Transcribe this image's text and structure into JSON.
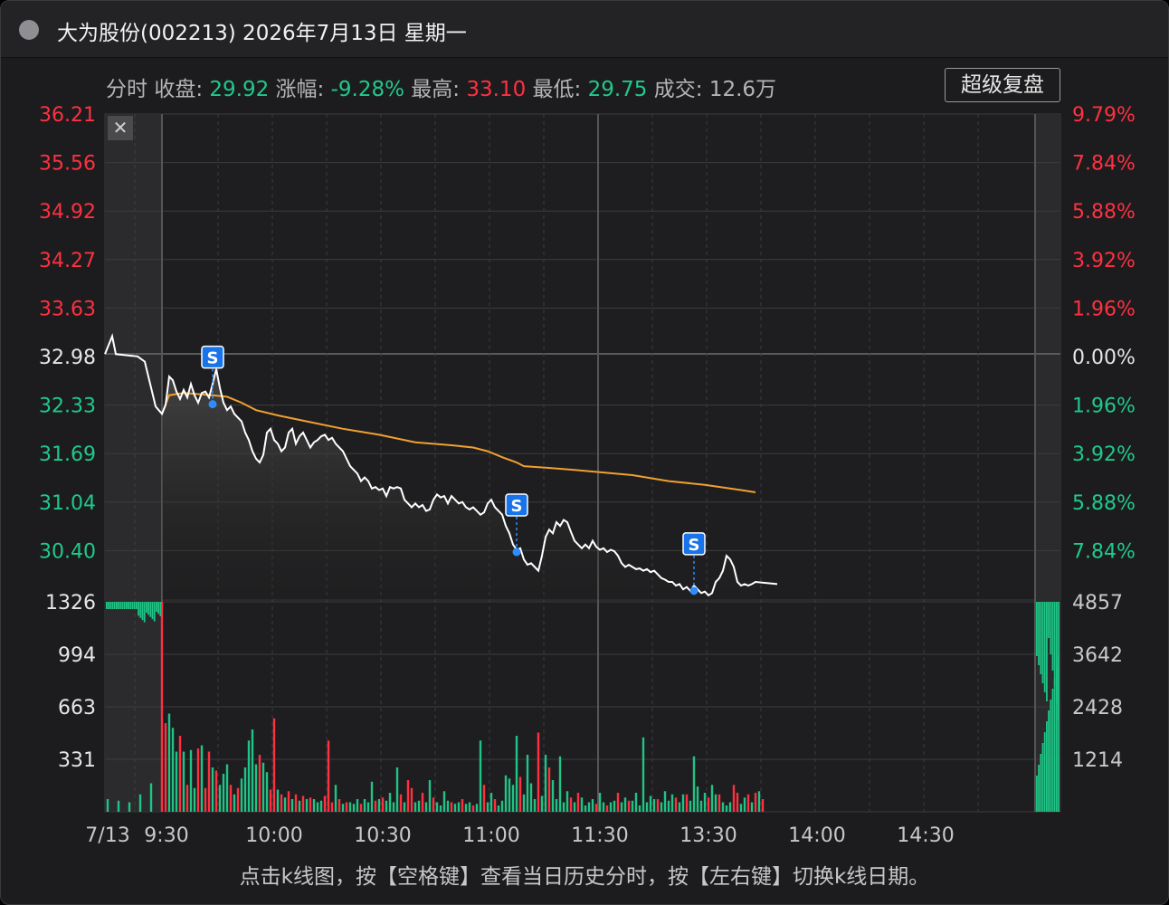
{
  "window": {
    "title": "大为股份(002213) 2026年7月13日 星期一",
    "stats": {
      "mode": "分时",
      "close_label": "收盘:",
      "close_value": "29.92",
      "change_label": "涨幅:",
      "change_value": "-9.28%",
      "high_label": "最高:",
      "high_value": "33.10",
      "low_label": "最低:",
      "low_value": "29.75",
      "volume_label": "成交:",
      "volume_value": "12.6万"
    },
    "super_replay_label": "超级复盘",
    "close_icon_glyph": "✕",
    "footer_hint": "点击k线图，按【空格键】查看当日历史分时，按【左右键】切换k线日期。"
  },
  "chart_data": {
    "type": "line",
    "price_axis_left": [
      "36.21",
      "35.56",
      "34.92",
      "34.27",
      "33.63",
      "32.98",
      "32.33",
      "31.69",
      "31.04",
      "30.40"
    ],
    "pct_axis_right": [
      "9.79%",
      "7.84%",
      "5.88%",
      "3.92%",
      "1.96%",
      "0.00%",
      "1.96%",
      "3.92%",
      "5.88%",
      "7.84%"
    ],
    "volume_axis_left": [
      "1326",
      "994",
      "663",
      "331"
    ],
    "volume_axis_right": [
      "4857",
      "3642",
      "2428",
      "1214"
    ],
    "x_ticks": [
      "7/13",
      "9:30",
      "10:00",
      "10:30",
      "11:00",
      "11:30",
      "13:30",
      "14:00",
      "14:30"
    ],
    "prev_close": 32.98,
    "price_range": [
      29.75,
      36.21
    ],
    "volume_max": 1326,
    "sell_marker_label": "S",
    "price_points": [
      [
        -15,
        33.0
      ],
      [
        -13,
        33.24
      ],
      [
        -12,
        33.0
      ],
      [
        -8,
        32.98
      ],
      [
        -6,
        32.97
      ],
      [
        -4,
        32.9
      ],
      [
        -3,
        32.7
      ],
      [
        -2,
        32.5
      ],
      [
        -1,
        32.3
      ],
      [
        0,
        32.2
      ],
      [
        1,
        32.32
      ],
      [
        2,
        32.7
      ],
      [
        3,
        32.65
      ],
      [
        4,
        32.5
      ],
      [
        5,
        32.4
      ],
      [
        6,
        32.52
      ],
      [
        7,
        32.42
      ],
      [
        8,
        32.6
      ],
      [
        9,
        32.45
      ],
      [
        10,
        32.35
      ],
      [
        11,
        32.48
      ],
      [
        12,
        32.5
      ],
      [
        13,
        32.42
      ],
      [
        14,
        32.6
      ],
      [
        15,
        32.8
      ],
      [
        16,
        32.55
      ],
      [
        17,
        32.35
      ],
      [
        18,
        32.25
      ],
      [
        19,
        32.3
      ],
      [
        20,
        32.2
      ],
      [
        21,
        32.15
      ],
      [
        22,
        32.1
      ],
      [
        23,
        31.95
      ],
      [
        24,
        31.85
      ],
      [
        25,
        31.7
      ],
      [
        26,
        31.6
      ],
      [
        27,
        31.55
      ],
      [
        28,
        31.65
      ],
      [
        29,
        31.95
      ],
      [
        30,
        32.0
      ],
      [
        31,
        31.85
      ],
      [
        32,
        31.8
      ],
      [
        33,
        31.7
      ],
      [
        34,
        31.75
      ],
      [
        35,
        31.95
      ],
      [
        36,
        32.0
      ],
      [
        37,
        31.8
      ],
      [
        38,
        31.9
      ],
      [
        39,
        31.95
      ],
      [
        40,
        31.85
      ],
      [
        41,
        31.75
      ],
      [
        42,
        31.82
      ],
      [
        43,
        31.85
      ],
      [
        44,
        31.9
      ],
      [
        45,
        31.92
      ],
      [
        46,
        31.85
      ],
      [
        47,
        31.88
      ],
      [
        48,
        31.8
      ],
      [
        49,
        31.75
      ],
      [
        50,
        31.7
      ],
      [
        51,
        31.6
      ],
      [
        52,
        31.5
      ],
      [
        53,
        31.45
      ],
      [
        54,
        31.4
      ],
      [
        55,
        31.3
      ],
      [
        56,
        31.35
      ],
      [
        57,
        31.3
      ],
      [
        58,
        31.2
      ],
      [
        59,
        31.22
      ],
      [
        60,
        31.18
      ],
      [
        61,
        31.2
      ],
      [
        62,
        31.1
      ],
      [
        63,
        31.22
      ],
      [
        64,
        31.2
      ],
      [
        65,
        31.22
      ],
      [
        66,
        31.2
      ],
      [
        67,
        31.05
      ],
      [
        68,
        31.0
      ],
      [
        69,
        30.95
      ],
      [
        70,
        31.0
      ],
      [
        71,
        30.95
      ],
      [
        72,
        30.98
      ],
      [
        73,
        30.9
      ],
      [
        74,
        30.92
      ],
      [
        75,
        31.05
      ],
      [
        76,
        31.12
      ],
      [
        77,
        31.08
      ],
      [
        78,
        31.1
      ],
      [
        79,
        31.0
      ],
      [
        80,
        31.1
      ],
      [
        81,
        31.05
      ],
      [
        82,
        31.0
      ],
      [
        83,
        31.02
      ],
      [
        84,
        30.95
      ],
      [
        85,
        30.92
      ],
      [
        86,
        30.95
      ],
      [
        87,
        30.9
      ],
      [
        88,
        30.85
      ],
      [
        89,
        30.88
      ],
      [
        90,
        31.0
      ],
      [
        91,
        31.05
      ],
      [
        92,
        30.95
      ],
      [
        93,
        30.9
      ],
      [
        94,
        30.85
      ],
      [
        95,
        30.7
      ],
      [
        96,
        30.6
      ],
      [
        97,
        30.45
      ],
      [
        98,
        30.38
      ],
      [
        99,
        30.4
      ],
      [
        100,
        30.25
      ],
      [
        101,
        30.18
      ],
      [
        102,
        30.2
      ],
      [
        103,
        30.15
      ],
      [
        104,
        30.1
      ],
      [
        105,
        30.3
      ],
      [
        106,
        30.55
      ],
      [
        107,
        30.65
      ],
      [
        108,
        30.6
      ],
      [
        109,
        30.75
      ],
      [
        110,
        30.7
      ],
      [
        111,
        30.78
      ],
      [
        112,
        30.75
      ],
      [
        113,
        30.62
      ],
      [
        114,
        30.5
      ],
      [
        115,
        30.45
      ],
      [
        116,
        30.4
      ],
      [
        117,
        30.45
      ],
      [
        118,
        30.4
      ],
      [
        119,
        30.5
      ],
      [
        120,
        30.42
      ],
      [
        121,
        30.38
      ],
      [
        122,
        30.4
      ],
      [
        123,
        30.35
      ],
      [
        124,
        30.38
      ],
      [
        125,
        30.36
      ],
      [
        126,
        30.3
      ],
      [
        127,
        30.2
      ],
      [
        128,
        30.15
      ],
      [
        129,
        30.18
      ],
      [
        130,
        30.15
      ],
      [
        131,
        30.12
      ],
      [
        132,
        30.13
      ],
      [
        133,
        30.1
      ],
      [
        134,
        30.12
      ],
      [
        135,
        30.08
      ],
      [
        136,
        30.1
      ],
      [
        137,
        30.05
      ],
      [
        138,
        30.0
      ],
      [
        139,
        29.98
      ],
      [
        140,
        29.95
      ],
      [
        141,
        29.95
      ],
      [
        142,
        29.9
      ],
      [
        143,
        29.92
      ],
      [
        144,
        29.85
      ],
      [
        145,
        29.88
      ],
      [
        146,
        29.83
      ],
      [
        147,
        29.9
      ],
      [
        148,
        29.85
      ],
      [
        149,
        29.8
      ],
      [
        150,
        29.82
      ],
      [
        151,
        29.77
      ],
      [
        152,
        29.8
      ],
      [
        153,
        29.95
      ],
      [
        154,
        30.0
      ],
      [
        155,
        30.1
      ],
      [
        156,
        30.3
      ],
      [
        157,
        30.25
      ],
      [
        158,
        30.15
      ],
      [
        159,
        29.95
      ],
      [
        160,
        29.9
      ],
      [
        161,
        29.92
      ],
      [
        162,
        29.9
      ],
      [
        163,
        29.92
      ],
      [
        164,
        29.95
      ],
      [
        170,
        29.92
      ]
    ],
    "avg_points": [
      [
        0,
        32.2
      ],
      [
        2,
        32.45
      ],
      [
        6,
        32.48
      ],
      [
        14,
        32.45
      ],
      [
        18,
        32.43
      ],
      [
        22,
        32.35
      ],
      [
        26,
        32.25
      ],
      [
        32,
        32.18
      ],
      [
        40,
        32.1
      ],
      [
        50,
        32.0
      ],
      [
        60,
        31.92
      ],
      [
        70,
        31.82
      ],
      [
        80,
        31.78
      ],
      [
        86,
        31.75
      ],
      [
        90,
        31.7
      ],
      [
        94,
        31.62
      ],
      [
        98,
        31.55
      ],
      [
        100,
        31.5
      ],
      [
        106,
        31.48
      ],
      [
        114,
        31.45
      ],
      [
        130,
        31.38
      ],
      [
        140,
        31.3
      ],
      [
        150,
        31.25
      ],
      [
        160,
        31.18
      ],
      [
        164,
        31.15
      ]
    ],
    "sell_markers": [
      [
        14,
        32.33
      ],
      [
        98,
        30.35
      ],
      [
        147,
        29.83
      ]
    ],
    "volume_bars": [
      [
        -15,
        80,
        "g"
      ],
      [
        -12,
        70,
        "g"
      ],
      [
        -9,
        60,
        "g"
      ],
      [
        -6,
        110,
        "g"
      ],
      [
        -3,
        180,
        "g"
      ],
      [
        0,
        1326,
        "r"
      ],
      [
        1,
        560,
        "r"
      ],
      [
        2,
        620,
        "g"
      ],
      [
        3,
        530,
        "g"
      ],
      [
        4,
        380,
        "g"
      ],
      [
        5,
        480,
        "r"
      ],
      [
        6,
        380,
        "g"
      ],
      [
        7,
        170,
        "r"
      ],
      [
        8,
        390,
        "g"
      ],
      [
        9,
        150,
        "g"
      ],
      [
        10,
        400,
        "r"
      ],
      [
        11,
        420,
        "g"
      ],
      [
        12,
        150,
        "r"
      ],
      [
        13,
        380,
        "r"
      ],
      [
        14,
        280,
        "g"
      ],
      [
        15,
        260,
        "r"
      ],
      [
        16,
        170,
        "g"
      ],
      [
        17,
        240,
        "g"
      ],
      [
        18,
        300,
        "g"
      ],
      [
        19,
        170,
        "r"
      ],
      [
        20,
        110,
        "g"
      ],
      [
        21,
        150,
        "r"
      ],
      [
        22,
        210,
        "g"
      ],
      [
        23,
        280,
        "g"
      ],
      [
        24,
        450,
        "g"
      ],
      [
        25,
        520,
        "g"
      ],
      [
        26,
        300,
        "g"
      ],
      [
        27,
        360,
        "r"
      ],
      [
        28,
        310,
        "g"
      ],
      [
        29,
        250,
        "g"
      ],
      [
        30,
        140,
        "r"
      ],
      [
        31,
        590,
        "r"
      ],
      [
        32,
        140,
        "g"
      ],
      [
        33,
        110,
        "r"
      ],
      [
        34,
        90,
        "g"
      ],
      [
        35,
        130,
        "r"
      ],
      [
        36,
        80,
        "g"
      ],
      [
        37,
        110,
        "r"
      ],
      [
        38,
        70,
        "g"
      ],
      [
        39,
        100,
        "r"
      ],
      [
        40,
        80,
        "g"
      ],
      [
        41,
        90,
        "r"
      ],
      [
        42,
        80,
        "g"
      ],
      [
        43,
        60,
        "g"
      ],
      [
        44,
        70,
        "g"
      ],
      [
        45,
        100,
        "r"
      ],
      [
        46,
        450,
        "r"
      ],
      [
        47,
        60,
        "r"
      ],
      [
        48,
        170,
        "g"
      ],
      [
        49,
        80,
        "r"
      ],
      [
        50,
        50,
        "g"
      ],
      [
        51,
        60,
        "r"
      ],
      [
        52,
        60,
        "g"
      ],
      [
        53,
        50,
        "g"
      ],
      [
        54,
        80,
        "g"
      ],
      [
        55,
        50,
        "r"
      ],
      [
        56,
        80,
        "g"
      ],
      [
        57,
        60,
        "g"
      ],
      [
        58,
        190,
        "g"
      ],
      [
        59,
        70,
        "r"
      ],
      [
        60,
        80,
        "g"
      ],
      [
        61,
        90,
        "r"
      ],
      [
        62,
        70,
        "g"
      ],
      [
        63,
        120,
        "g"
      ],
      [
        64,
        60,
        "g"
      ],
      [
        65,
        280,
        "g"
      ],
      [
        66,
        110,
        "r"
      ],
      [
        67,
        60,
        "g"
      ],
      [
        68,
        200,
        "r"
      ],
      [
        69,
        150,
        "r"
      ],
      [
        70,
        60,
        "g"
      ],
      [
        71,
        70,
        "g"
      ],
      [
        72,
        120,
        "r"
      ],
      [
        73,
        60,
        "g"
      ],
      [
        74,
        200,
        "g"
      ],
      [
        75,
        90,
        "r"
      ],
      [
        76,
        60,
        "g"
      ],
      [
        77,
        40,
        "g"
      ],
      [
        78,
        130,
        "g"
      ],
      [
        79,
        70,
        "g"
      ],
      [
        80,
        60,
        "r"
      ],
      [
        81,
        50,
        "g"
      ],
      [
        82,
        60,
        "g"
      ],
      [
        83,
        80,
        "r"
      ],
      [
        84,
        50,
        "g"
      ],
      [
        85,
        60,
        "g"
      ],
      [
        86,
        40,
        "r"
      ],
      [
        87,
        50,
        "g"
      ],
      [
        88,
        450,
        "g"
      ],
      [
        89,
        170,
        "r"
      ],
      [
        90,
        60,
        "g"
      ],
      [
        91,
        120,
        "g"
      ],
      [
        92,
        80,
        "r"
      ],
      [
        93,
        40,
        "g"
      ],
      [
        94,
        70,
        "g"
      ],
      [
        95,
        230,
        "g"
      ],
      [
        96,
        210,
        "g"
      ],
      [
        97,
        170,
        "g"
      ],
      [
        98,
        480,
        "g"
      ],
      [
        99,
        220,
        "r"
      ],
      [
        100,
        110,
        "g"
      ],
      [
        101,
        360,
        "g"
      ],
      [
        102,
        180,
        "g"
      ],
      [
        103,
        80,
        "g"
      ],
      [
        104,
        500,
        "r"
      ],
      [
        105,
        100,
        "g"
      ],
      [
        106,
        360,
        "g"
      ],
      [
        107,
        280,
        "r"
      ],
      [
        108,
        200,
        "g"
      ],
      [
        109,
        80,
        "g"
      ],
      [
        110,
        350,
        "g"
      ],
      [
        111,
        60,
        "g"
      ],
      [
        112,
        130,
        "g"
      ],
      [
        113,
        90,
        "r"
      ],
      [
        114,
        60,
        "g"
      ],
      [
        115,
        120,
        "r"
      ],
      [
        116,
        90,
        "g"
      ],
      [
        117,
        40,
        "g"
      ],
      [
        118,
        60,
        "g"
      ],
      [
        119,
        80,
        "g"
      ],
      [
        120,
        50,
        "r"
      ],
      [
        121,
        120,
        "g"
      ],
      [
        122,
        60,
        "g"
      ],
      [
        123,
        40,
        "r"
      ],
      [
        124,
        60,
        "g"
      ],
      [
        125,
        70,
        "g"
      ],
      [
        126,
        120,
        "r"
      ],
      [
        127,
        60,
        "g"
      ],
      [
        128,
        90,
        "g"
      ],
      [
        129,
        70,
        "r"
      ],
      [
        130,
        70,
        "g"
      ],
      [
        131,
        120,
        "g"
      ],
      [
        132,
        40,
        "g"
      ],
      [
        133,
        470,
        "g"
      ],
      [
        134,
        60,
        "g"
      ],
      [
        135,
        100,
        "g"
      ],
      [
        136,
        80,
        "g"
      ],
      [
        137,
        80,
        "r"
      ],
      [
        138,
        60,
        "g"
      ],
      [
        139,
        130,
        "g"
      ],
      [
        140,
        70,
        "g"
      ],
      [
        141,
        110,
        "g"
      ],
      [
        142,
        90,
        "r"
      ],
      [
        143,
        60,
        "g"
      ],
      [
        144,
        110,
        "g"
      ],
      [
        145,
        110,
        "r"
      ],
      [
        146,
        70,
        "g"
      ],
      [
        147,
        350,
        "g"
      ],
      [
        148,
        160,
        "g"
      ],
      [
        149,
        70,
        "g"
      ],
      [
        150,
        120,
        "g"
      ],
      [
        151,
        90,
        "r"
      ],
      [
        152,
        170,
        "g"
      ],
      [
        153,
        110,
        "g"
      ],
      [
        154,
        110,
        "r"
      ],
      [
        155,
        60,
        "g"
      ],
      [
        156,
        40,
        "g"
      ],
      [
        157,
        60,
        "g"
      ],
      [
        158,
        170,
        "r"
      ],
      [
        159,
        120,
        "r"
      ],
      [
        160,
        50,
        "g"
      ],
      [
        161,
        90,
        "g"
      ],
      [
        162,
        110,
        "r"
      ],
      [
        163,
        60,
        "g"
      ],
      [
        164,
        120,
        "r"
      ],
      [
        165,
        130,
        "g"
      ],
      [
        166,
        80,
        "r"
      ]
    ]
  }
}
